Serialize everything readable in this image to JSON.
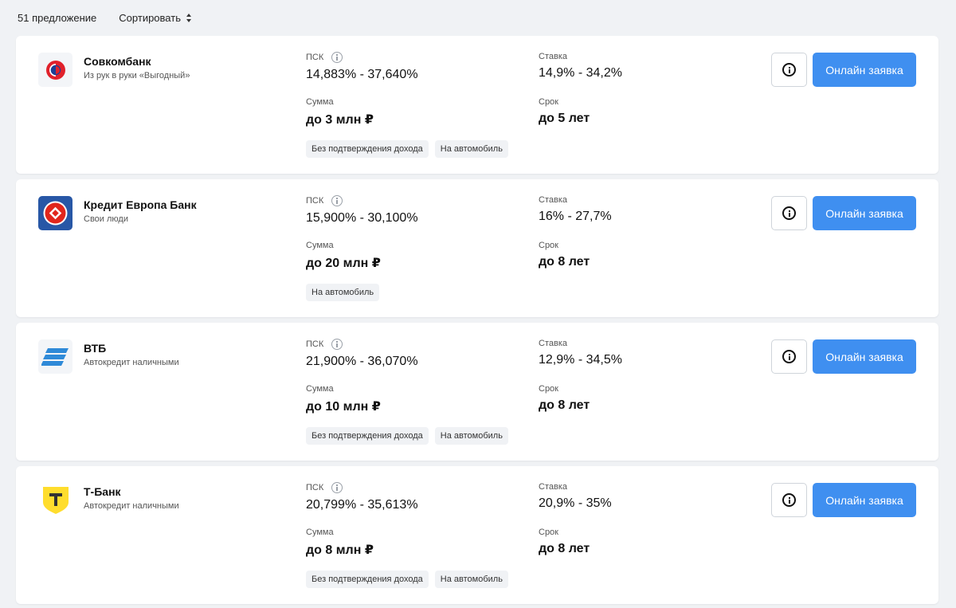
{
  "topbar": {
    "count_label": "51 предложение",
    "sort_label": "Сортировать"
  },
  "labels": {
    "psk": "ПСК",
    "rate": "Ставка",
    "amount": "Сумма",
    "term": "Срок",
    "apply_button": "Онлайн заявка"
  },
  "offers": [
    {
      "bank": "Совкомбанк",
      "product": "Из рук в руки «Выгодный»",
      "psk": "14,883% - 37,640%",
      "rate": "14,9% - 34,2%",
      "amount": "до 3 млн ₽",
      "term": "до 5 лет",
      "tags": [
        "Без подтверждения дохода",
        "На автомобиль"
      ],
      "logo_icon": "sovcombank-logo-icon",
      "logo_colors": [
        "#e0212b",
        "#1b3f96"
      ]
    },
    {
      "bank": "Кредит Европа Банк",
      "product": "Свои люди",
      "psk": "15,900% - 30,100%",
      "rate": "16% - 27,7%",
      "amount": "до 20 млн ₽",
      "term": "до 8 лет",
      "tags": [
        "На автомобиль"
      ],
      "logo_icon": "credit-europe-logo-icon",
      "logo_colors": [
        "#2857a6",
        "#e1261c"
      ]
    },
    {
      "bank": "ВТБ",
      "product": "Автокредит наличными",
      "psk": "21,900% - 36,070%",
      "rate": "12,9% - 34,5%",
      "amount": "до 10 млн ₽",
      "term": "до 8 лет",
      "tags": [
        "Без подтверждения дохода",
        "На автомобиль"
      ],
      "logo_icon": "vtb-logo-icon",
      "logo_colors": [
        "#2f8ad8"
      ]
    },
    {
      "bank": "Т-Банк",
      "product": "Автокредит наличными",
      "psk": "20,799% - 35,613%",
      "rate": "20,9% - 35%",
      "amount": "до 8 млн ₽",
      "term": "до 8 лет",
      "tags": [
        "Без подтверждения дохода",
        "На автомобиль"
      ],
      "logo_icon": "tbank-logo-icon",
      "logo_colors": [
        "#ffdd2d",
        "#333333"
      ]
    }
  ],
  "colors": {
    "accent": "#3f8ff0",
    "page_bg": "#f0f2f5",
    "tag_bg": "#f0f2f5"
  }
}
